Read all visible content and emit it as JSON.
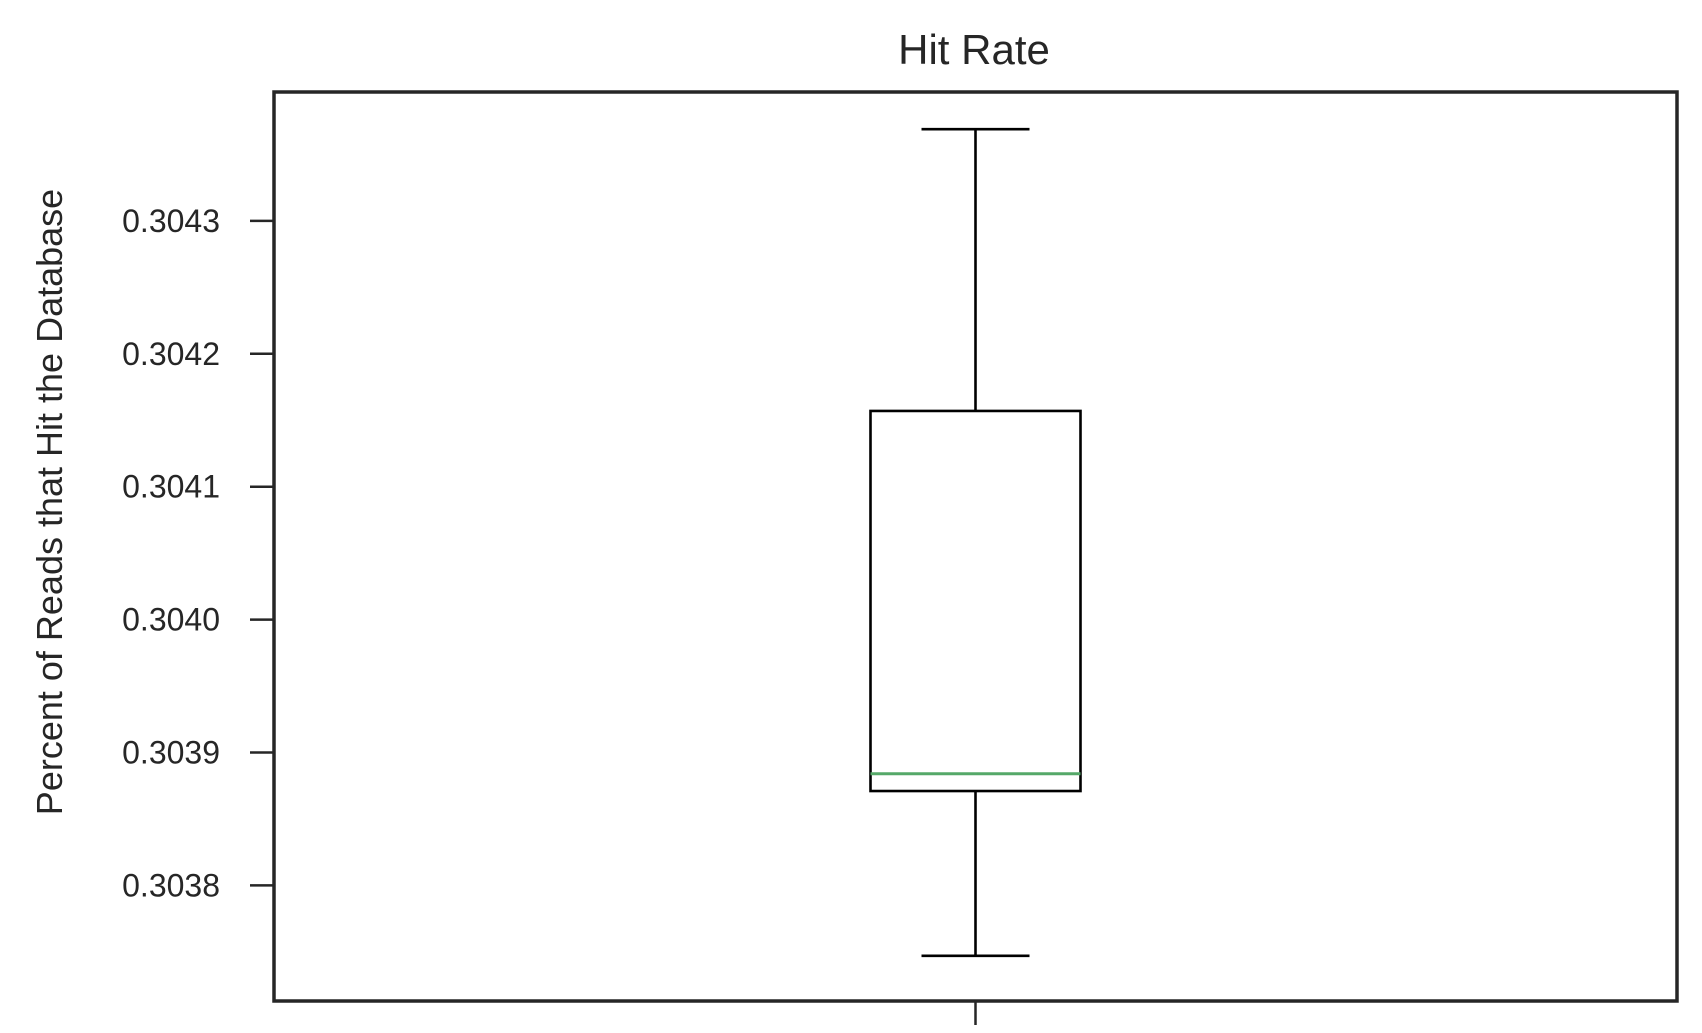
{
  "chart_data": {
    "type": "box",
    "title": "Hit Rate",
    "xlabel": "",
    "ylabel": "Percent of Reads that Hit the Database",
    "ylim": [
      0.303713,
      0.304397
    ],
    "yticks": [
      0.3038,
      0.3039,
      0.304,
      0.3041,
      0.3042,
      0.3043
    ],
    "ytick_labels": [
      "0.3038",
      "0.3039",
      "0.3040",
      "0.3041",
      "0.3042",
      "0.3043"
    ],
    "xticks": [
      1
    ],
    "xtick_labels": [
      ""
    ],
    "grid": false,
    "boxes": [
      {
        "position": 1,
        "whisker_low": 0.303747,
        "q1": 0.303871,
        "median": 0.303884,
        "q3": 0.304157,
        "whisker_high": 0.304369
      }
    ],
    "colors": {
      "box": "#000000",
      "median": "#55a868",
      "frame": "#262626",
      "text": "#262626"
    }
  }
}
